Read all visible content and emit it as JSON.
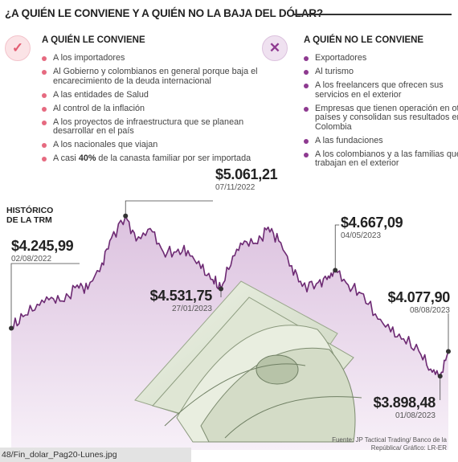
{
  "title": "¿A QUIÉN LE CONVIENE Y A QUIÉN NO LA BAJA DEL DÓLAR?",
  "left_column": {
    "icon": "check-circle-icon",
    "header": "A QUIÉN LE CONVIENE",
    "items": [
      "A los importadores",
      "Al Gobierno y colombianos en general porque baja el encarecimiento de la deuda internacional",
      "A las entidades de Salud",
      "Al control de la inflación",
      "A los proyectos de infraestructura que se planean desarrollar en el país",
      "A los nacionales que viajan"
    ],
    "last_item": {
      "prefix": "A casi ",
      "bold": "40%",
      "suffix": " de la canasta familiar por ser importada"
    }
  },
  "right_column": {
    "icon": "x-circle-icon",
    "header": "A QUIÉN NO LE CONVIENE",
    "items": [
      "Exportadores",
      "Al turismo",
      "A los freelancers que ofrecen sus servicios en el exterior",
      "Empresas que tienen operación en otros países y consolidan sus resultados en Colombia",
      "A las fundaciones",
      "A los colombianos y a las familias que trabajan en el exterior"
    ]
  },
  "chart_label": "HISTÓRICO DE LA TRM",
  "annotations": [
    {
      "value": "$4.245,99",
      "date": "02/08/2022"
    },
    {
      "value": "$5.061,21",
      "date": "07/11/2022"
    },
    {
      "value": "$4.531,75",
      "date": "27/01/2023"
    },
    {
      "value": "$4.667,09",
      "date": "04/05/2023"
    },
    {
      "value": "$4.077,90",
      "date": "08/08/2023"
    },
    {
      "value": "$3.898,48",
      "date": "01/08/2023"
    }
  ],
  "source": "Fuente: JP Tactical Trading/ Banco de la República/ Gráfico: LR-ER",
  "filename": "48/Fin_dolar_Pag20-Lunes.jpg",
  "colors": {
    "line": "#6d2a73",
    "area": "#e8d6ea",
    "accent_pink": "#e66a80",
    "accent_purple": "#8e3a90"
  },
  "chart_data": {
    "type": "area",
    "title": "HISTÓRICO DE LA TRM",
    "xlabel": "",
    "ylabel": "",
    "x_range": [
      "2022-08-02",
      "2023-08-08"
    ],
    "ylim": [
      3800,
      5200
    ],
    "grid": false,
    "series": [
      {
        "values": [
          {
            "x": "2022-08-02",
            "y": 4245.99
          },
          {
            "x": "2022-08-12",
            "y": 4330
          },
          {
            "x": "2022-08-24",
            "y": 4420
          },
          {
            "x": "2022-09-05",
            "y": 4470
          },
          {
            "x": "2022-09-16",
            "y": 4440
          },
          {
            "x": "2022-09-27",
            "y": 4560
          },
          {
            "x": "2022-10-06",
            "y": 4530
          },
          {
            "x": "2022-10-18",
            "y": 4720
          },
          {
            "x": "2022-10-26",
            "y": 4900
          },
          {
            "x": "2022-11-07",
            "y": 5061.21
          },
          {
            "x": "2022-11-16",
            "y": 4880
          },
          {
            "x": "2022-11-28",
            "y": 4970
          },
          {
            "x": "2022-12-09",
            "y": 4800
          },
          {
            "x": "2022-12-20",
            "y": 4800
          },
          {
            "x": "2022-12-30",
            "y": 4810
          },
          {
            "x": "2023-01-10",
            "y": 4680
          },
          {
            "x": "2023-01-20",
            "y": 4600
          },
          {
            "x": "2023-01-27",
            "y": 4531.75
          },
          {
            "x": "2023-02-06",
            "y": 4770
          },
          {
            "x": "2023-02-16",
            "y": 4880
          },
          {
            "x": "2023-02-27",
            "y": 4860
          },
          {
            "x": "2023-03-08",
            "y": 4980
          },
          {
            "x": "2023-03-17",
            "y": 4880
          },
          {
            "x": "2023-03-28",
            "y": 4700
          },
          {
            "x": "2023-04-06",
            "y": 4550
          },
          {
            "x": "2023-04-18",
            "y": 4570
          },
          {
            "x": "2023-04-27",
            "y": 4600
          },
          {
            "x": "2023-05-04",
            "y": 4667.09
          },
          {
            "x": "2023-05-15",
            "y": 4560
          },
          {
            "x": "2023-05-26",
            "y": 4500
          },
          {
            "x": "2023-06-07",
            "y": 4350
          },
          {
            "x": "2023-06-20",
            "y": 4220
          },
          {
            "x": "2023-07-01",
            "y": 4170
          },
          {
            "x": "2023-07-14",
            "y": 4080
          },
          {
            "x": "2023-07-24",
            "y": 3950
          },
          {
            "x": "2023-08-01",
            "y": 3898.48
          },
          {
            "x": "2023-08-08",
            "y": 4077.9
          }
        ]
      }
    ]
  }
}
